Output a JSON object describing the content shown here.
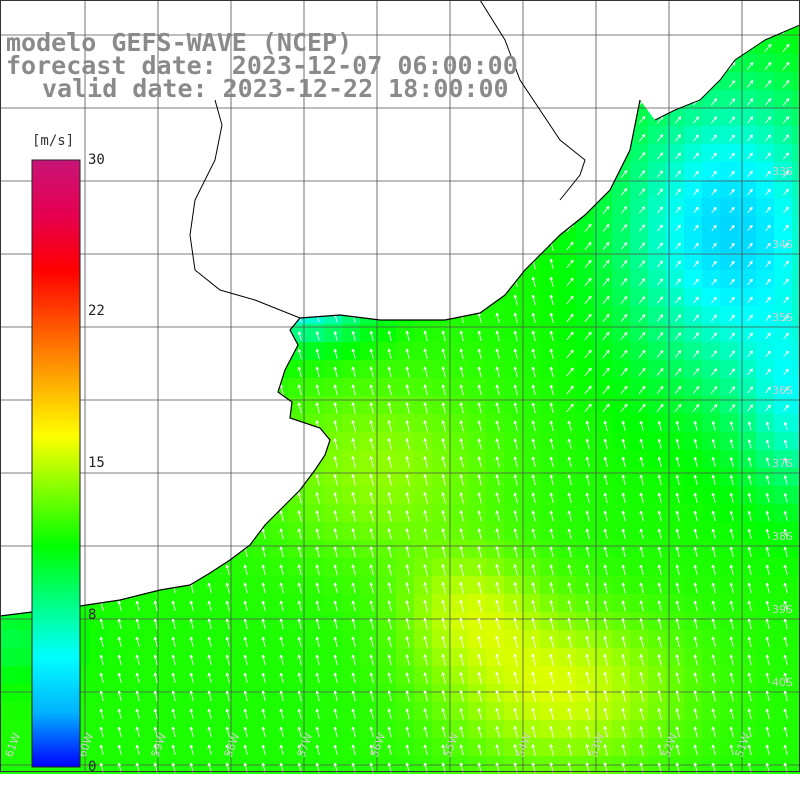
{
  "title": {
    "line1": "modelo GEFS-WAVE (NCEP)",
    "line2": "forecast date: 2023-12-07 06:00:00",
    "line3": "valid date: 2023-12-22 18:00:00"
  },
  "colorbar": {
    "unit": "[m/s]",
    "labels": [
      "30",
      "22",
      "15",
      "8",
      "0"
    ],
    "min": 0,
    "max": 30,
    "colors": [
      "#0000ff",
      "#00b4ff",
      "#00ffff",
      "#00ff7f",
      "#00ff00",
      "#7fff00",
      "#ffff00",
      "#ffaa00",
      "#ff5500",
      "#ff0000",
      "#e60050",
      "#c81478"
    ]
  },
  "map": {
    "land_color": "#ffffff",
    "grid_color": "#505050",
    "coast_color": "#000000",
    "arrow_color": "#ffffff",
    "lon_labels": [
      "61W",
      "60W",
      "59W",
      "58W",
      "57W",
      "56W",
      "55W",
      "54W",
      "53W",
      "52W",
      "51W"
    ],
    "lat_labels": [
      "33S",
      "34S",
      "35S",
      "36S",
      "37S",
      "38S",
      "39S",
      "40S"
    ]
  }
}
